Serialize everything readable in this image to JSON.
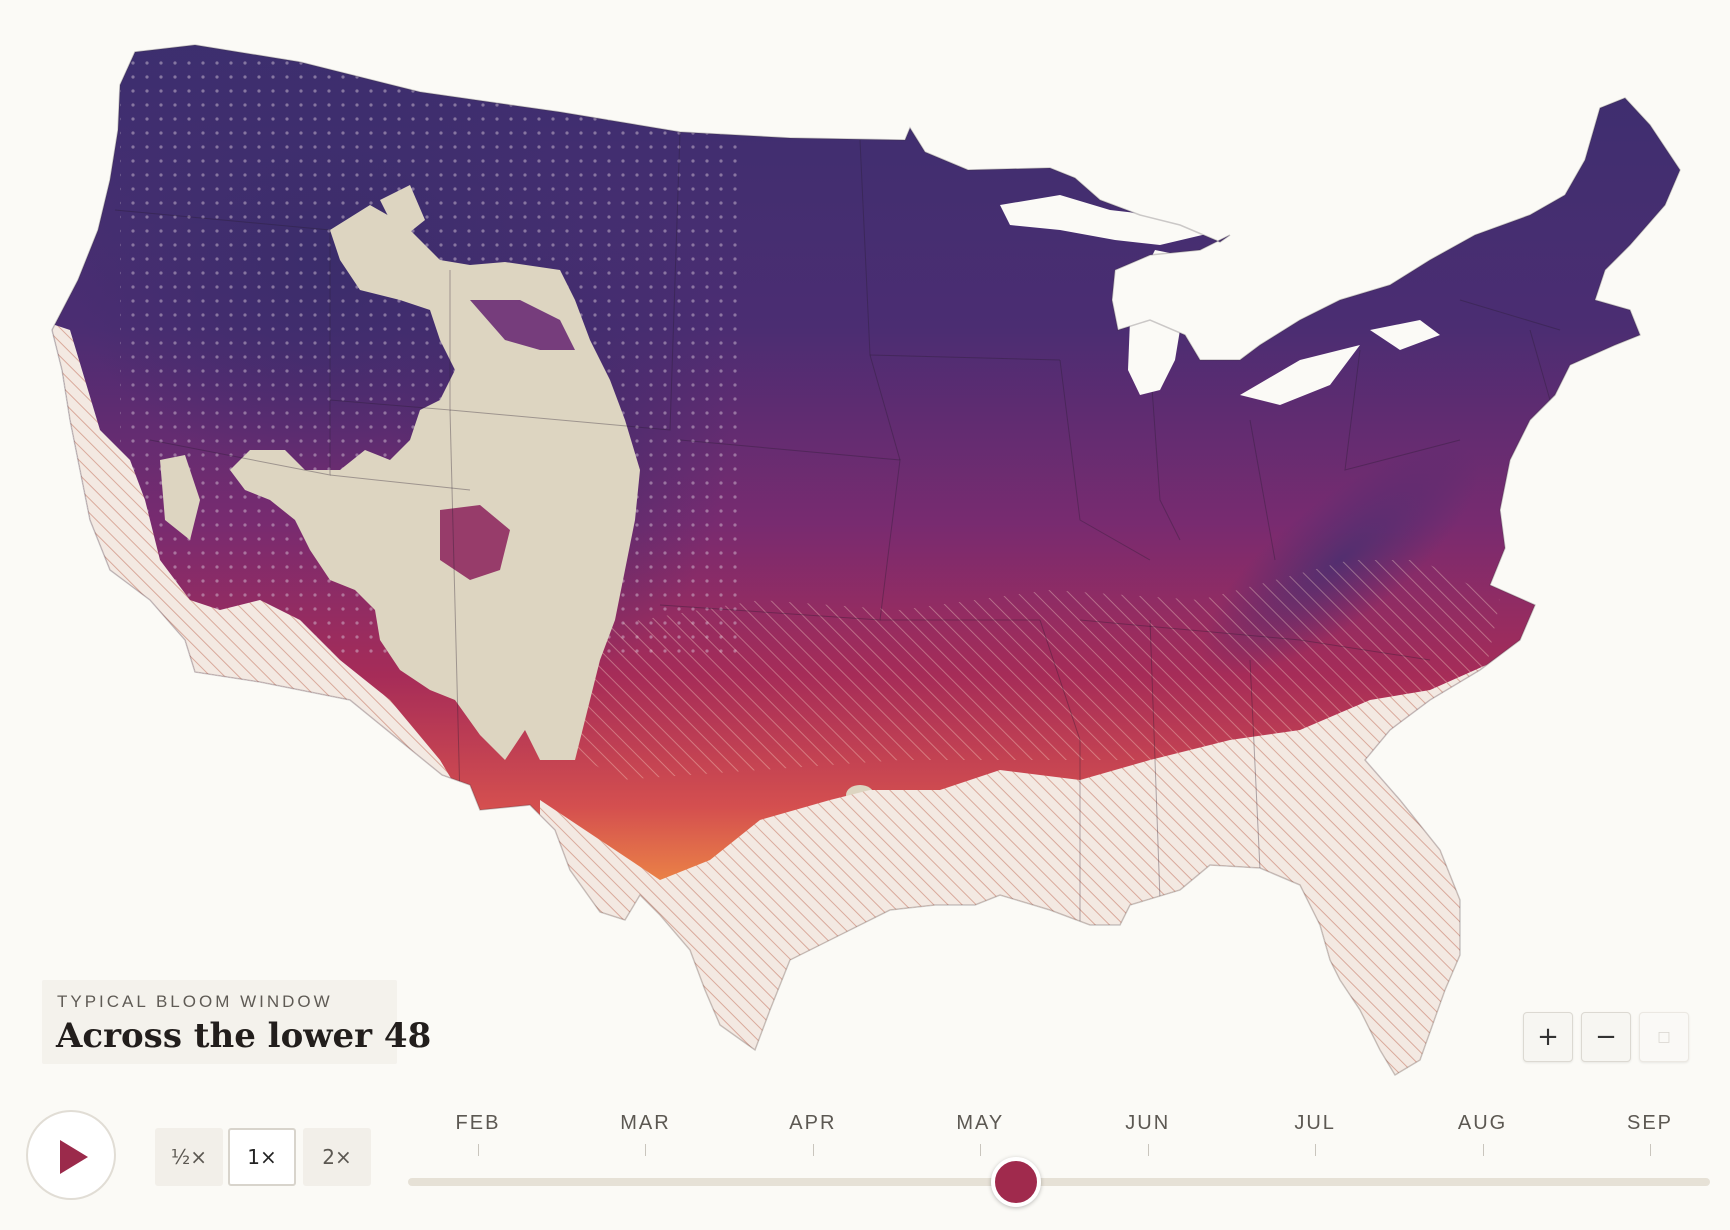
{
  "map": {
    "label_eyebrow": "TYPICAL BLOOM WINDOW",
    "label_title": "Across the lower 48",
    "colors": {
      "background": "#fbfaf6",
      "not_blooming_fill": "#f3e9e2",
      "not_blooming_hatch": "#d9a99b",
      "barren_fill": "#ddd5c1",
      "peak_late": "#3a2f6e",
      "peak_mid": "#6a2c74",
      "peak_early": "#b02e55",
      "peak_edge": "#ee8a45"
    }
  },
  "zoom_controls": {
    "zoom_in": "+",
    "zoom_out": "−",
    "reset": "□"
  },
  "playback": {
    "speeds": [
      {
        "label": "½×",
        "active": false
      },
      {
        "label": "1×",
        "active": true
      },
      {
        "label": "2×",
        "active": false
      }
    ]
  },
  "timeline": {
    "months": [
      "FEB",
      "MAR",
      "APR",
      "MAY",
      "JUN",
      "JUL",
      "AUG",
      "SEP"
    ],
    "current_position": 0.467,
    "accent_color": "#a02a4d"
  }
}
